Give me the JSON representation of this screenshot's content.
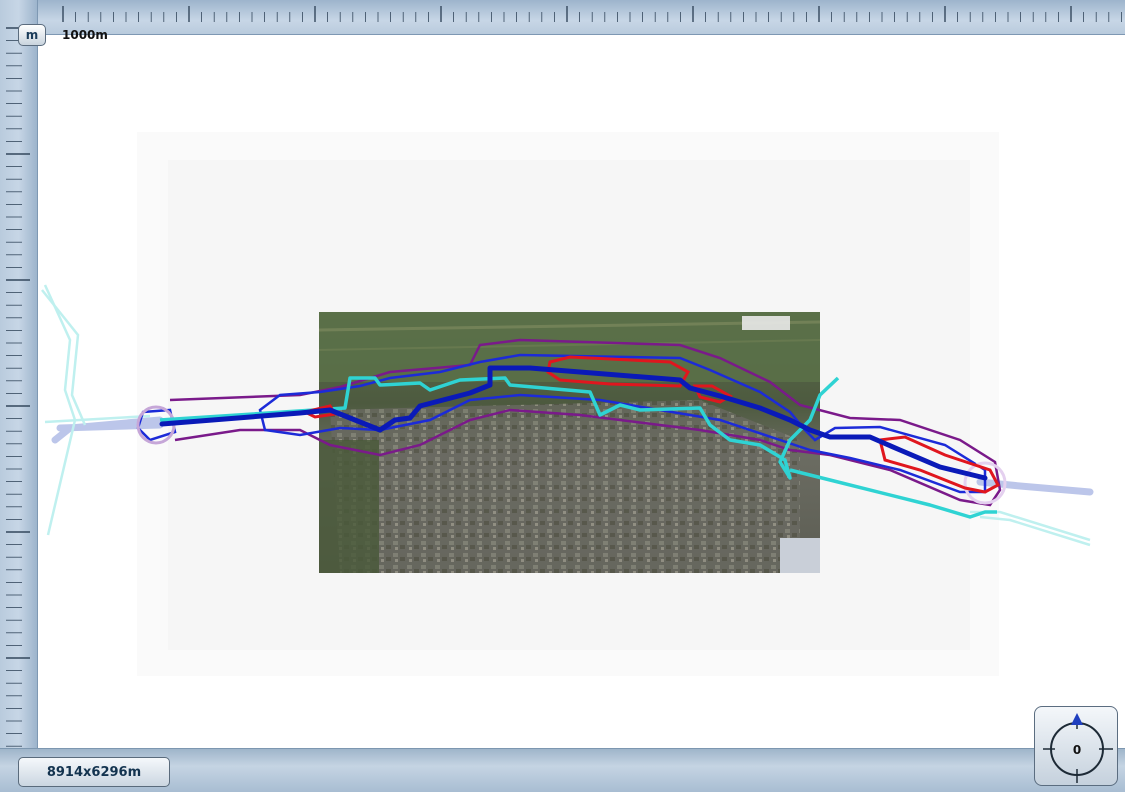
{
  "toolbar": {
    "unit_button_label": "m",
    "scale_label": "1000m"
  },
  "status": {
    "extent_label": "8914x6296m"
  },
  "compass": {
    "heading": "0"
  },
  "colors": {
    "ruler": "#b9cbdd",
    "route_core": "#0a1ab8",
    "zone_inner": "#1c2bd8",
    "zone_outer": "#7a1a8a",
    "highlight": "#e0161e",
    "cyan_track": "#2fd3d3",
    "faded_track": "#bcc6ea"
  },
  "icons": {
    "north_arrow": "north-arrow-icon"
  }
}
